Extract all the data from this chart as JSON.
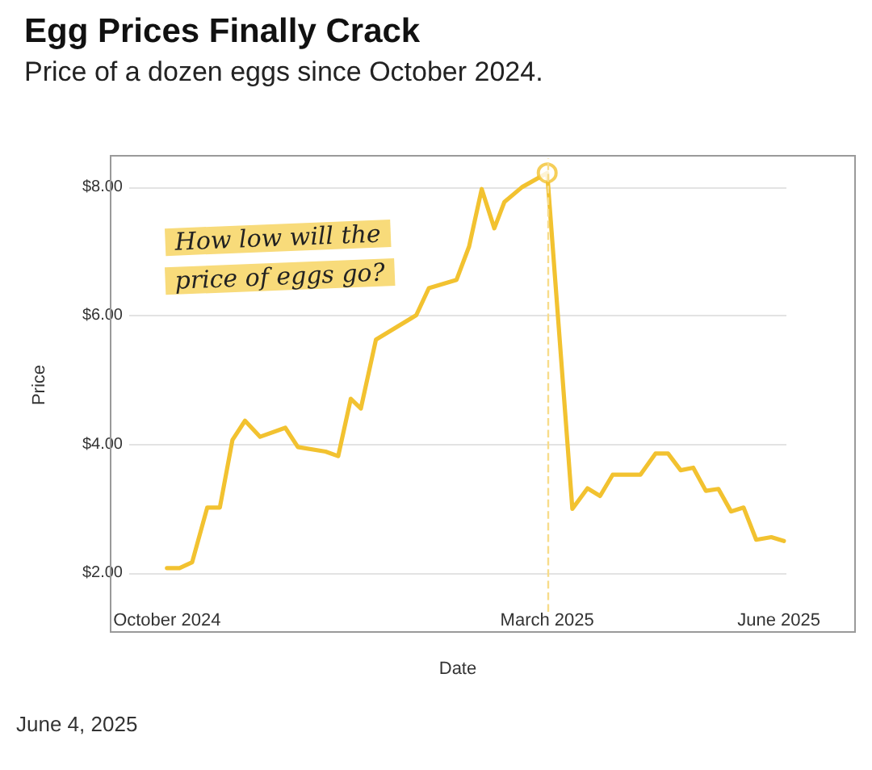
{
  "chart_data": {
    "type": "line",
    "title": "Egg Prices Finally Crack",
    "subtitle": "Price of a dozen eggs since October 2024.",
    "xlabel": "Date",
    "ylabel": "Price",
    "x": [
      "2024-10-01",
      "2024-10-06",
      "2024-10-11",
      "2024-10-17",
      "2024-10-22",
      "2024-10-27",
      "2024-11-01",
      "2024-11-07",
      "2024-11-17",
      "2024-11-22",
      "2024-12-03",
      "2024-12-08",
      "2024-12-13",
      "2024-12-17",
      "2024-12-23",
      "2025-01-08",
      "2025-01-13",
      "2025-01-24",
      "2025-01-29",
      "2025-02-03",
      "2025-02-08",
      "2025-02-12",
      "2025-02-19",
      "2025-03-01",
      "2025-03-11",
      "2025-03-17",
      "2025-03-22",
      "2025-03-27",
      "2025-04-07",
      "2025-04-13",
      "2025-04-18",
      "2025-04-23",
      "2025-04-28",
      "2025-05-03",
      "2025-05-08",
      "2025-05-13",
      "2025-05-18",
      "2025-05-23",
      "2025-05-29",
      "2025-06-03"
    ],
    "series": [
      {
        "color": "#f2c230",
        "values": [
          2.08,
          2.08,
          2.17,
          3.02,
          3.02,
          4.07,
          4.37,
          4.12,
          4.26,
          3.96,
          3.89,
          3.82,
          4.71,
          4.56,
          5.63,
          6.01,
          6.43,
          6.56,
          7.08,
          7.97,
          7.36,
          7.77,
          8.0,
          8.22,
          3.0,
          3.32,
          3.2,
          3.53,
          3.53,
          3.86,
          3.86,
          3.6,
          3.64,
          3.28,
          3.31,
          2.96,
          3.02,
          2.52,
          2.56,
          2.5
        ]
      },
      {
        "type": "scatter",
        "color": "#f2c230",
        "marker": "circle",
        "x": [
          "2025-03-01"
        ],
        "values": [
          8.22
        ]
      }
    ],
    "xlim": [
      "2024-09-16",
      "2025-06-04"
    ],
    "ylim": [
      1.4,
      8.45
    ],
    "xticks": [
      {
        "value": "2024-10-01",
        "label": "October 2024"
      },
      {
        "value": "2025-03-01",
        "label": "March 2025"
      },
      {
        "value": "2025-06-01",
        "label": "June 2025"
      }
    ],
    "yticks": [
      {
        "value": 2,
        "label": "$2.00"
      },
      {
        "value": 4,
        "label": "$4.00"
      },
      {
        "value": 6,
        "label": "$6.00"
      },
      {
        "value": 8,
        "label": "$8.00"
      }
    ],
    "ref_lines": [
      {
        "axis": "x",
        "value": "2025-03-01",
        "color": "#f7dc8a",
        "line_style": "dashed"
      }
    ],
    "annotations": [
      "How low will the price of eggs go?",
      "June 4, 2025"
    ],
    "grid": "y",
    "marker": "none",
    "line_style": "solid"
  }
}
